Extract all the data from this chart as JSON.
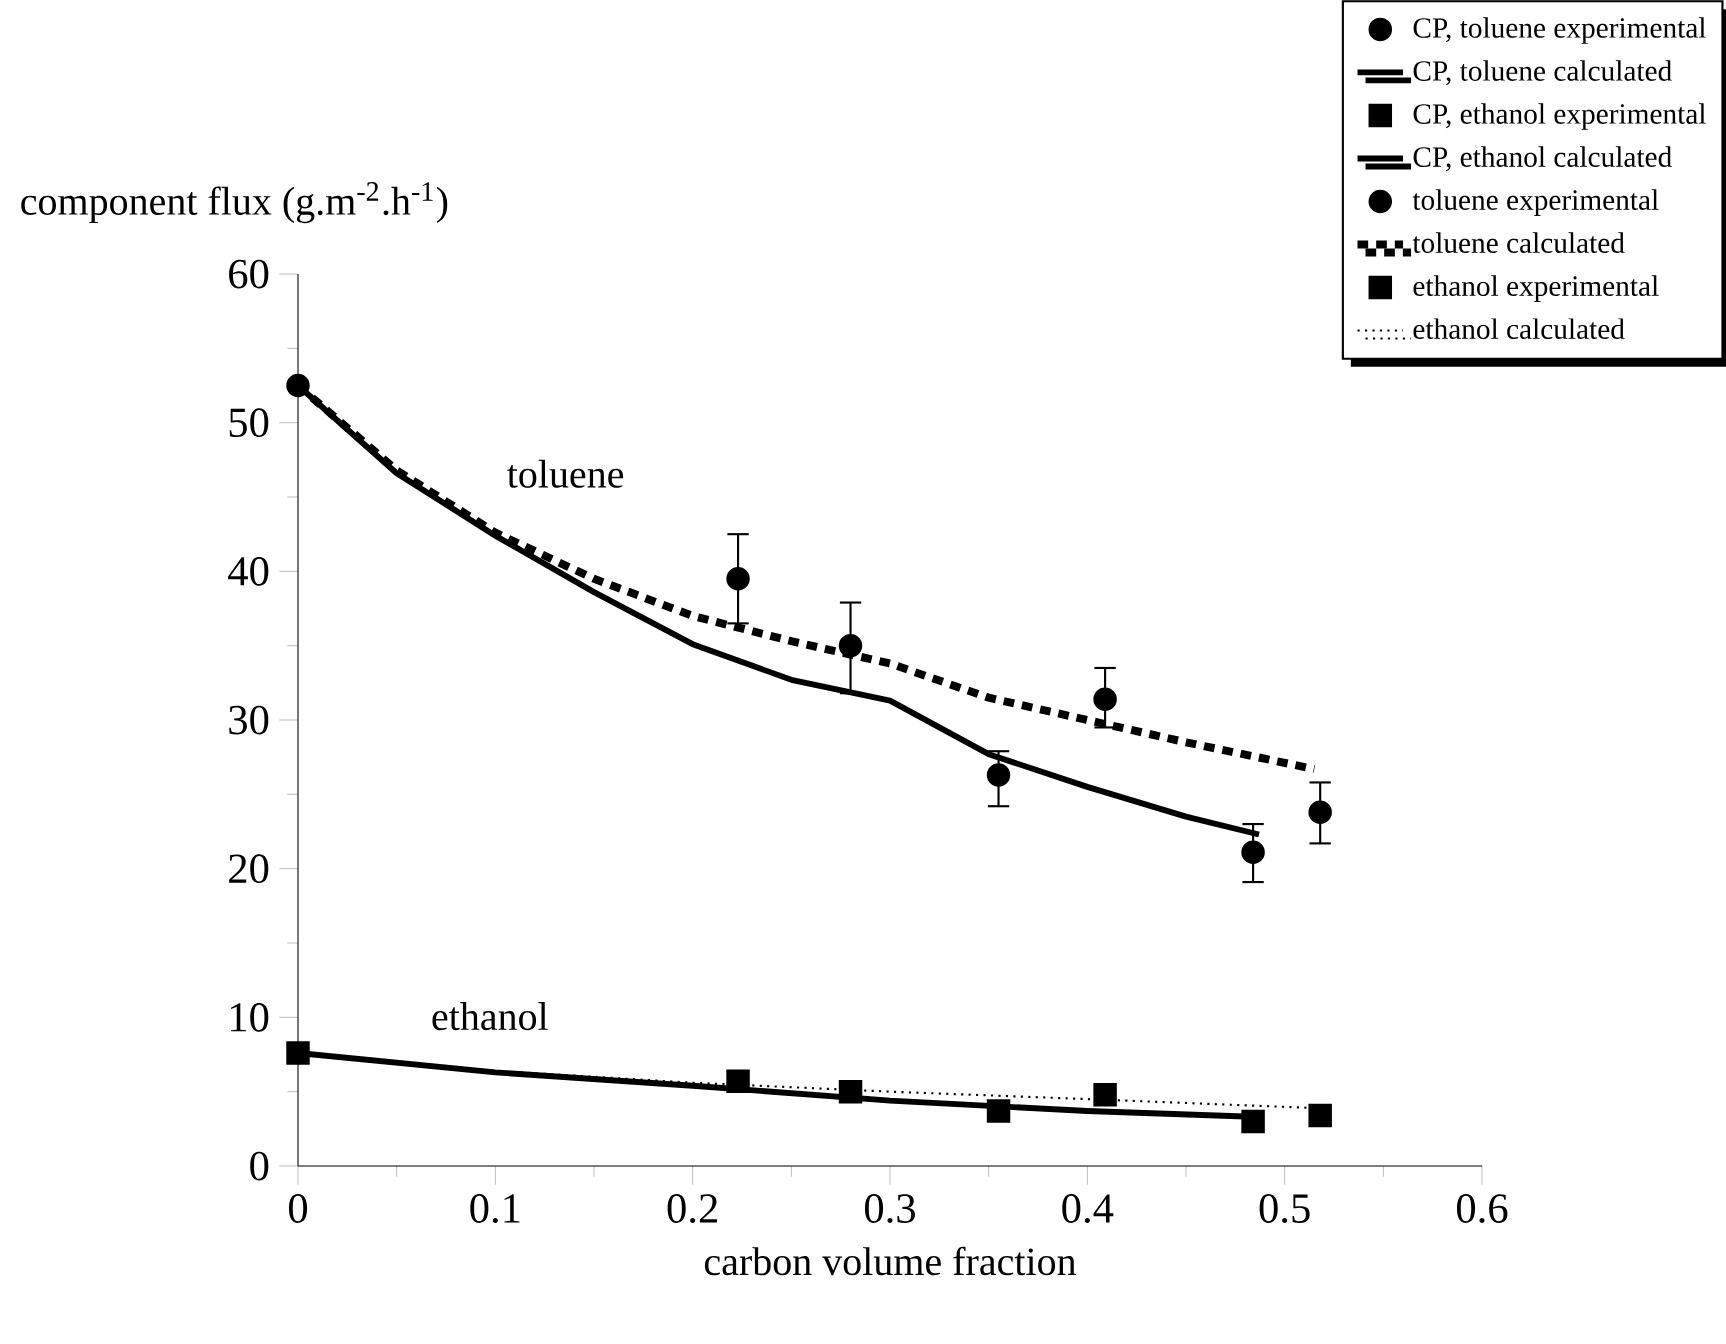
{
  "chart_data": {
    "type": "line",
    "xlabel": "carbon volume fraction",
    "ylabel": "component flux (g.m$^{-2}$.h$^{-1}$)",
    "xlim": [
      0,
      0.6
    ],
    "ylim": [
      0,
      60
    ],
    "xticks": [
      0,
      0.1,
      0.2,
      0.3,
      0.4,
      0.5,
      0.6
    ],
    "yticks": [
      0,
      10,
      20,
      30,
      40,
      50,
      60
    ],
    "legend": "top right",
    "annotations": [
      "toluene",
      "ethanol"
    ],
    "series": [
      {
        "name": "CP, toluene experimental",
        "type": "scatter",
        "marker": "circle",
        "color": "#000000",
        "x": [
          0.28,
          0.355,
          0.484
        ],
        "values": [
          35.0,
          26.3,
          21.1
        ],
        "errors": [
          [
            31.8,
            37.9
          ],
          [
            24.2,
            27.9
          ],
          [
            19.1,
            23.0
          ]
        ]
      },
      {
        "name": "CP, toluene calculated",
        "line_style": "solid",
        "color": "#000000",
        "x": [
          0,
          0.05,
          0.1,
          0.15,
          0.2,
          0.25,
          0.3,
          0.35,
          0.4,
          0.45,
          0.487
        ],
        "values": [
          52.5,
          46.6,
          42.4,
          38.6,
          35.1,
          32.7,
          31.3,
          27.7,
          25.5,
          23.5,
          22.3
        ]
      },
      {
        "name": "CP, ethanol experimental",
        "type": "scatter",
        "marker": "square",
        "color": "#000000",
        "x": [
          0.28,
          0.355,
          0.484
        ],
        "values": [
          5.0,
          3.7,
          3.0
        ]
      },
      {
        "name": "CP, ethanol calculated",
        "line_style": "solid",
        "color": "#000000",
        "x": [
          0,
          0.1,
          0.2,
          0.3,
          0.4,
          0.487
        ],
        "values": [
          7.6,
          6.3,
          5.4,
          4.4,
          3.7,
          3.3
        ]
      },
      {
        "name": "toluene experimental",
        "type": "scatter",
        "marker": "circle",
        "color": "#000000",
        "x": [
          0,
          0.223,
          0.409,
          0.518
        ],
        "values": [
          52.5,
          39.5,
          31.4,
          23.8
        ],
        "errors": [
          null,
          [
            36.5,
            42.5
          ],
          [
            29.5,
            33.5
          ],
          [
            21.7,
            25.8
          ]
        ]
      },
      {
        "name": "toluene calculated",
        "line_style": "dashed",
        "color": "#000000",
        "x": [
          0,
          0.05,
          0.1,
          0.15,
          0.2,
          0.25,
          0.3,
          0.35,
          0.4,
          0.45,
          0.515
        ],
        "values": [
          52.5,
          46.8,
          42.6,
          39.5,
          37.0,
          35.3,
          33.8,
          31.5,
          30.0,
          28.5,
          26.7
        ]
      },
      {
        "name": "ethanol experimental",
        "type": "scatter",
        "marker": "square",
        "color": "#000000",
        "x": [
          0,
          0.223,
          0.409,
          0.518
        ],
        "values": [
          7.6,
          5.7,
          4.8,
          3.4
        ]
      },
      {
        "name": "ethanol calculated",
        "line_style": "dotted",
        "color": "#000000",
        "x": [
          0,
          0.1,
          0.2,
          0.3,
          0.4,
          0.515
        ],
        "values": [
          7.6,
          6.4,
          5.6,
          5.0,
          4.5,
          3.9
        ]
      }
    ]
  }
}
